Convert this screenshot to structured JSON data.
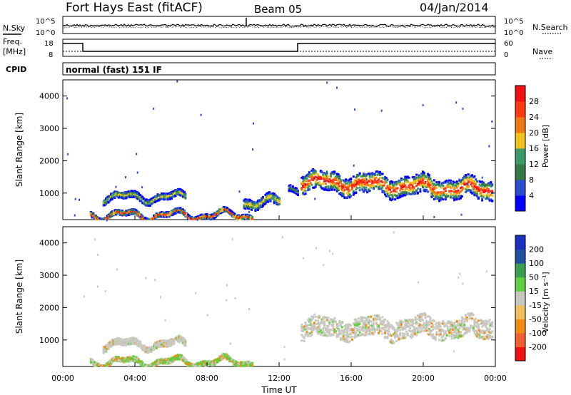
{
  "header": {
    "title": "Fort Hays East (fitACF)",
    "beam": "Beam 05",
    "date": "04/Jan/2014"
  },
  "strips": {
    "sky": {
      "left_label": "N.Sky",
      "right_label": "N.Search",
      "ytick_left": [
        "10^5",
        "10^0"
      ],
      "ytick_right": [
        "10^5",
        "10^0"
      ]
    },
    "freq": {
      "left_label_1": "Freq.",
      "left_label_2": "[MHz]",
      "ytick_left": [
        "18",
        "8"
      ],
      "right_label": "Nave",
      "ytick_right": [
        "60",
        "0"
      ]
    },
    "cpid": {
      "label": "CPID",
      "text": "normal (fast) 151 IF"
    }
  },
  "colors": {
    "power": [
      "#0000ff",
      "#2c4cd0",
      "#347a44",
      "#3a9a6a",
      "#f2c21a",
      "#f07a12",
      "#ff3a10",
      "#f01010"
    ],
    "velocity": [
      "#f01010",
      "#f06030",
      "#f08c10",
      "#f0c060",
      "#c8c8c0",
      "#60d040",
      "#3aa050",
      "#2050a0",
      "#1a30c0"
    ],
    "grey": "#c8c8c0"
  },
  "chart_data": [
    {
      "type": "heatmap",
      "panel": "power",
      "xlabel": "",
      "ylabel": "Slant Range [km]",
      "yticks": [
        "4000",
        "3000",
        "2000",
        "1000"
      ],
      "ylim": [
        180,
        4500
      ],
      "xlim": [
        0,
        24
      ],
      "colorbar_label": "Power [dB]",
      "colorbar_ticks": [
        "28",
        "24",
        "20",
        "16",
        "12",
        "8",
        "4"
      ],
      "regions": [
        {
          "t0": 13.2,
          "t1": 23.8,
          "r_center": 1400,
          "r_width": 600,
          "level": "strong"
        },
        {
          "t0": 2.2,
          "t1": 6.8,
          "r_center": 900,
          "r_width": 200,
          "level": "medium"
        },
        {
          "t0": 1.5,
          "t1": 10.5,
          "r_center": 350,
          "r_width": 150,
          "level": "strong"
        },
        {
          "t0": 10.0,
          "t1": 12.0,
          "r_center": 750,
          "r_width": 300,
          "level": "medium"
        },
        {
          "t0": 12.5,
          "t1": 13.0,
          "r_center": 1200,
          "r_width": 200,
          "level": "weak"
        }
      ]
    },
    {
      "type": "heatmap",
      "panel": "velocity",
      "xlabel": "Time UT",
      "ylabel": "Slant Range [km]",
      "yticks": [
        "4000",
        "3000",
        "2000",
        "1000"
      ],
      "ylim": [
        180,
        4500
      ],
      "xlim": [
        0,
        24
      ],
      "xticks": [
        "00:00",
        "04:00",
        "08:00",
        "12:00",
        "16:00",
        "20:00",
        "00:00"
      ],
      "colorbar_label": "Velocity [m s⁻¹]",
      "colorbar_ticks": [
        "200",
        "100",
        "50",
        "15",
        "-15",
        "-50",
        "-100",
        "-200"
      ],
      "regions": [
        {
          "t0": 13.2,
          "t1": 23.8,
          "r_center": 1400,
          "r_width": 600,
          "level": "ground"
        },
        {
          "t0": 2.2,
          "t1": 6.8,
          "r_center": 900,
          "r_width": 200,
          "level": "ground"
        },
        {
          "t0": 1.5,
          "t1": 10.5,
          "r_center": 350,
          "r_width": 150,
          "level": "mixed"
        }
      ]
    }
  ]
}
